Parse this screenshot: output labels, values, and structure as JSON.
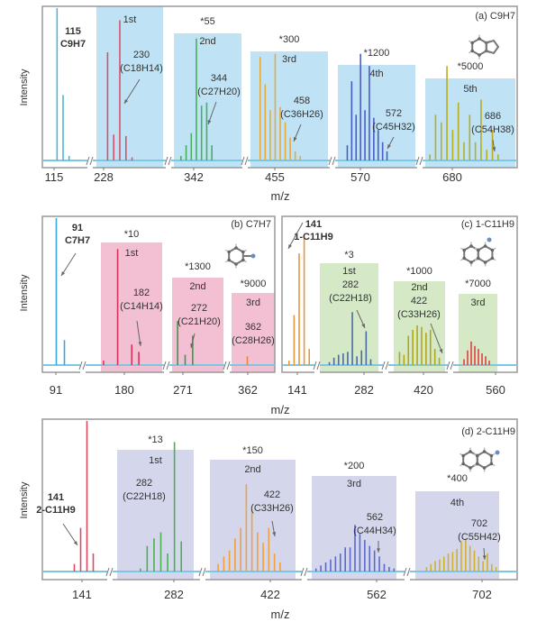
{
  "chart_data": [
    {
      "type": "bar",
      "panel": "(a)",
      "title": "C9H7",
      "xlabel": "m/z",
      "ylabel": "Intensity",
      "box_color": "#bfe3f5",
      "baseline_color": "#7cc8e4",
      "parent": {
        "mass": "115",
        "formula": "C9H7"
      },
      "segments": [
        {
          "tick": "115",
          "color": "#4bb8d0",
          "peaks": [
            1.0,
            0.43,
            0.03
          ]
        },
        {
          "tick": "228",
          "color": "#d9506a",
          "order": "1st",
          "mass": "230",
          "formula": "(C18H14)",
          "peaks": [
            0.71,
            0.17,
            0.92,
            0.16,
            0.02
          ]
        },
        {
          "tick": "342",
          "color": "#45b05a",
          "multiplier": "*55",
          "order": "2nd",
          "mass": "344",
          "formula": "(C27H20)",
          "peaks": [
            0.03,
            0.1,
            0.18,
            0.8,
            0.36,
            0.38,
            0.1
          ]
        },
        {
          "tick": "455",
          "color": "#e8a93c",
          "multiplier": "*300",
          "order": "3rd",
          "mass": "458",
          "formula": "(C36H26)",
          "peaks": [
            0.68,
            0.5,
            0.33,
            0.7,
            0.35,
            0.25,
            0.15,
            0.06,
            0.03
          ]
        },
        {
          "tick": "570",
          "color": "#4a5cc8",
          "multiplier": "*1200",
          "order": "4th",
          "mass": "572",
          "formula": "(C45H32)",
          "peaks": [
            0.1,
            0.52,
            0.3,
            0.7,
            0.33,
            0.62,
            0.28,
            0.2,
            0.12,
            0.06
          ]
        },
        {
          "tick": "680",
          "color": "#b8ad1e",
          "multiplier": "*5000",
          "order": "5th",
          "mass": "686",
          "formula": "(C54H38)",
          "peaks": [
            0.04,
            0.3,
            0.25,
            0.62,
            0.2,
            0.38,
            0.12,
            0.3,
            0.12,
            0.4,
            0.07,
            0.2,
            0.04
          ]
        }
      ]
    },
    {
      "type": "bar",
      "panel": "(b)",
      "title": "C7H7",
      "xlabel": "m/z",
      "ylabel": "Intensity",
      "box_color": "#f3bfd3",
      "baseline_color": "#7cc8e4",
      "parent": {
        "mass": "91",
        "formula": "C7H7"
      },
      "segments": [
        {
          "tick": "91",
          "color": "#3aa7dc",
          "peaks": [
            1.0,
            0.17
          ]
        },
        {
          "tick": "180",
          "color": "#d8345a",
          "multiplier": "*10",
          "order": "1st",
          "mass": "182",
          "formula": "(C14H14)",
          "peaks": [
            0.03,
            0,
            0.79,
            0,
            0.14,
            0.09
          ]
        },
        {
          "tick": "271",
          "color": "#3a9a4a",
          "multiplier": "*1300",
          "order": "2nd",
          "mass": "272",
          "formula": "(C21H20)",
          "peaks": [
            0.3,
            0.07,
            0.2
          ]
        },
        {
          "tick": "362",
          "color": "#e88840",
          "multiplier": "*9000",
          "order": "3rd",
          "mass": "362",
          "formula": "(C28H26)",
          "peaks": [
            0.06
          ]
        }
      ]
    },
    {
      "type": "bar",
      "panel": "(c)",
      "title": "1-C11H9",
      "xlabel": "m/z",
      "ylabel": "",
      "box_color": "#d5e9c6",
      "baseline_color": "#7cc8e4",
      "parent": {
        "mass": "141",
        "formula": "1-C11H9"
      },
      "segments": [
        {
          "tick": "141",
          "color": "#e8963a",
          "peaks": [
            0.03,
            0.34,
            0.76,
            0.88,
            0.11
          ]
        },
        {
          "tick": "282",
          "color": "#4a6aa8",
          "multiplier": "*3",
          "order": "1st",
          "mass": "282",
          "formula": "(C22H18)",
          "peaks": [
            0.02,
            0.05,
            0.07,
            0.08,
            0.09,
            0.36,
            0.06,
            0.1,
            0.23,
            0.04
          ]
        },
        {
          "tick": "420",
          "color": "#b0a81a",
          "multiplier": "*1000",
          "order": "2nd",
          "mass": "422",
          "formula": "(C33H26)",
          "peaks": [
            0.09,
            0.07,
            0.2,
            0.24,
            0.27,
            0.26,
            0.22,
            0.24,
            0.11,
            0.05
          ]
        },
        {
          "tick": "560",
          "color": "#e04040",
          "multiplier": "*7000",
          "order": "3rd",
          "peaks": [
            0.04,
            0.1,
            0.16,
            0.13,
            0.11,
            0.08,
            0.06,
            0.03
          ]
        }
      ]
    },
    {
      "type": "bar",
      "panel": "(d)",
      "title": "2-C11H9",
      "xlabel": "m/z",
      "ylabel": "Intensity",
      "box_color": "#d4d7ec",
      "baseline_color": "#7cc8e4",
      "parent": {
        "mass": "141",
        "formula": "2-C11H9"
      },
      "segments": [
        {
          "tick": "141",
          "color": "#e04860",
          "peaks": [
            0.05,
            0.29,
            1.0,
            0.12
          ]
        },
        {
          "tick": "282",
          "color": "#4ab050",
          "multiplier": "*13",
          "order": "1st",
          "mass": "282",
          "formula": "(C22H18)",
          "peaks": [
            0.02,
            0.17,
            0.22,
            0.26,
            0.12,
            0.86,
            0.2
          ]
        },
        {
          "tick": "422",
          "color": "#f0a040",
          "multiplier": "*150",
          "order": "2nd",
          "mass": "422",
          "formula": "(C33H26)",
          "peaks": [
            0.05,
            0.1,
            0.14,
            0.22,
            0.29,
            0.58,
            0.41,
            0.26,
            0.19,
            0.29,
            0.12,
            0.06
          ]
        },
        {
          "tick": "562",
          "color": "#5a68d0",
          "multiplier": "*200",
          "order": "3rd",
          "mass": "562",
          "formula": "(C44H34)",
          "peaks": [
            0.02,
            0.04,
            0.06,
            0.08,
            0.1,
            0.12,
            0.16,
            0.16,
            0.31,
            0.25,
            0.21,
            0.17,
            0.14,
            0.1,
            0.05,
            0.03,
            0.02
          ]
        },
        {
          "tick": "702",
          "color": "#d0b030",
          "multiplier": "*400",
          "order": "4th",
          "mass": "702",
          "formula": "(C55H42)",
          "peaks": [
            0.03,
            0.05,
            0.07,
            0.08,
            0.1,
            0.12,
            0.13,
            0.15,
            0.2,
            0.22,
            0.17,
            0.14,
            0.1,
            0.07,
            0.12,
            0.05,
            0.03
          ]
        }
      ]
    }
  ]
}
